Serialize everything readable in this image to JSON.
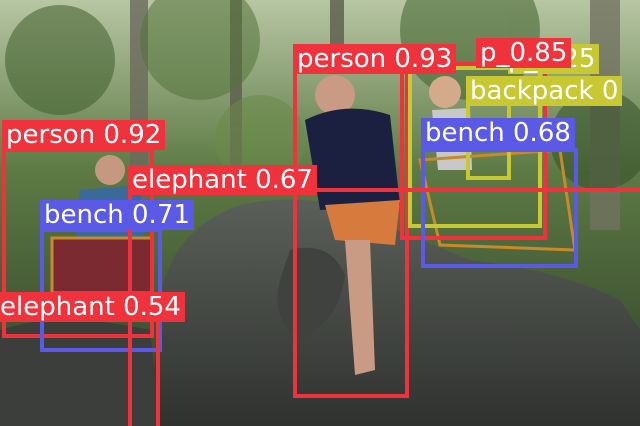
{
  "colors": {
    "person": "#f0323c",
    "elephant": "#f0323c",
    "bench": "#5a5ae6",
    "backpack": "#c8c832",
    "foliage": "#4f6a3a",
    "elephant_skin": "#4a4d49"
  },
  "detections": [
    {
      "id": "person-main",
      "label": "person 0.93",
      "cls": "person"
    },
    {
      "id": "person-left",
      "label": "person 0.92",
      "cls": "person"
    },
    {
      "id": "person-back",
      "label": "p_0.85",
      "cls": "person"
    },
    {
      "id": "person-small",
      "label": "p_0.25",
      "cls": "backpack"
    },
    {
      "id": "backpack",
      "label": "backpack 0",
      "cls": "backpack"
    },
    {
      "id": "bench-right",
      "label": "bench 0.68",
      "cls": "bench"
    },
    {
      "id": "bench-left",
      "label": "bench 0.71",
      "cls": "bench"
    },
    {
      "id": "elephant-main",
      "label": "elephant 0.67",
      "cls": "elephant"
    },
    {
      "id": "elephant-left",
      "label": "elephant 0.54",
      "cls": "elephant"
    }
  ]
}
